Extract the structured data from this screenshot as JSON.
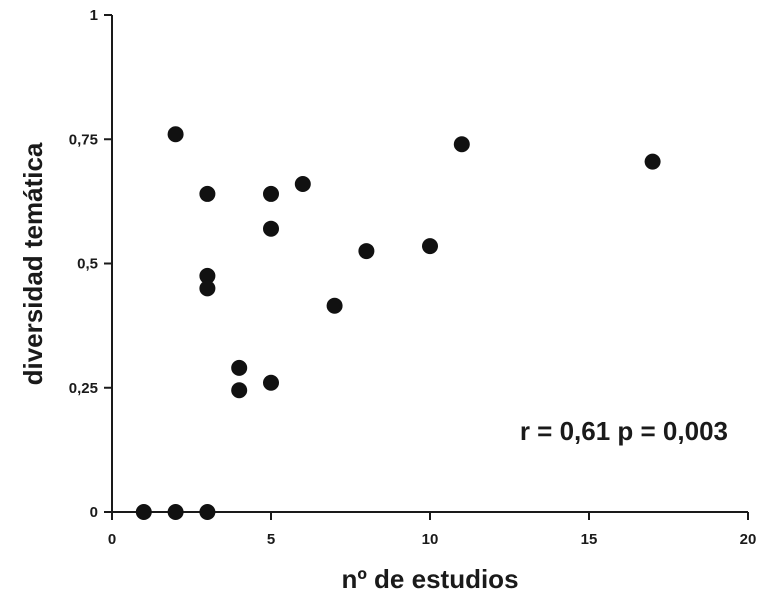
{
  "chart_data": {
    "type": "scatter",
    "title": "",
    "xlabel": "nº de estudios",
    "ylabel": "diversidad temática",
    "xlim": [
      0,
      20
    ],
    "ylim": [
      0,
      1
    ],
    "xticks": [
      0,
      5,
      10,
      15,
      20
    ],
    "xtick_labels": [
      "0",
      "5",
      "10",
      "15",
      "20"
    ],
    "yticks": [
      0,
      0.25,
      0.5,
      0.75,
      1
    ],
    "ytick_labels": [
      "0",
      "0,25",
      "0,5",
      "0,75",
      "1"
    ],
    "grid": false,
    "annotation": "r = 0,61 p = 0,003",
    "point_color": "#111111",
    "series": [
      {
        "points": [
          {
            "x": 1,
            "y": 0
          },
          {
            "x": 2,
            "y": 0
          },
          {
            "x": 3,
            "y": 0
          },
          {
            "x": 2,
            "y": 0.76
          },
          {
            "x": 3,
            "y": 0.64
          },
          {
            "x": 3,
            "y": 0.475
          },
          {
            "x": 3,
            "y": 0.45
          },
          {
            "x": 4,
            "y": 0.29
          },
          {
            "x": 4,
            "y": 0.245
          },
          {
            "x": 5,
            "y": 0.64
          },
          {
            "x": 5,
            "y": 0.57
          },
          {
            "x": 5,
            "y": 0.26
          },
          {
            "x": 6,
            "y": 0.66
          },
          {
            "x": 7,
            "y": 0.415
          },
          {
            "x": 8,
            "y": 0.525
          },
          {
            "x": 10,
            "y": 0.535
          },
          {
            "x": 11,
            "y": 0.74
          },
          {
            "x": 17,
            "y": 0.705
          }
        ]
      }
    ]
  }
}
